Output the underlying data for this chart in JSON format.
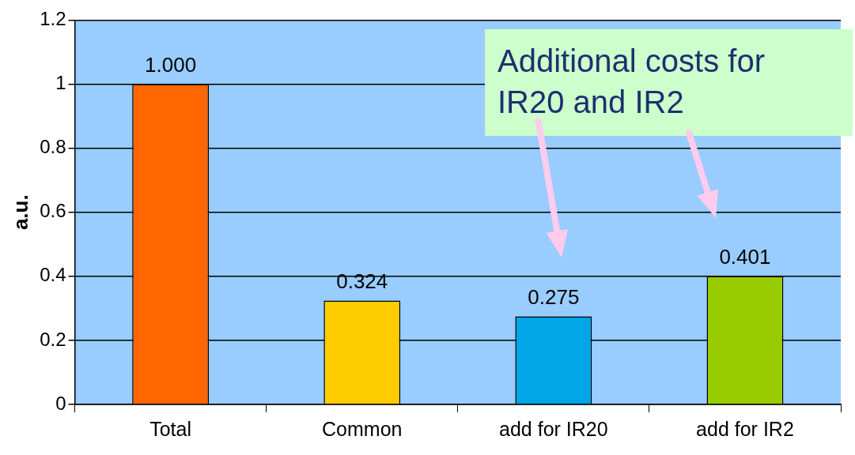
{
  "chart_data": {
    "type": "bar",
    "ylabel": "a.u.",
    "categories": [
      "Total",
      "Common",
      "add for IR20",
      "add for IR2"
    ],
    "values": [
      1.0,
      0.324,
      0.275,
      0.401
    ],
    "colors": [
      "#ff6600",
      "#ffcc00",
      "#00a6e6",
      "#99cc00"
    ],
    "value_labels": [
      "1.000",
      "0.324",
      "0.275",
      "0.401"
    ],
    "ylim": [
      0,
      1.2
    ],
    "yticks": [
      0,
      0.2,
      0.4,
      0.6,
      0.8,
      1,
      1.2
    ],
    "grid": "y",
    "legend": false,
    "annotations": [
      "Additional costs for IR20 and IR2"
    ]
  }
}
